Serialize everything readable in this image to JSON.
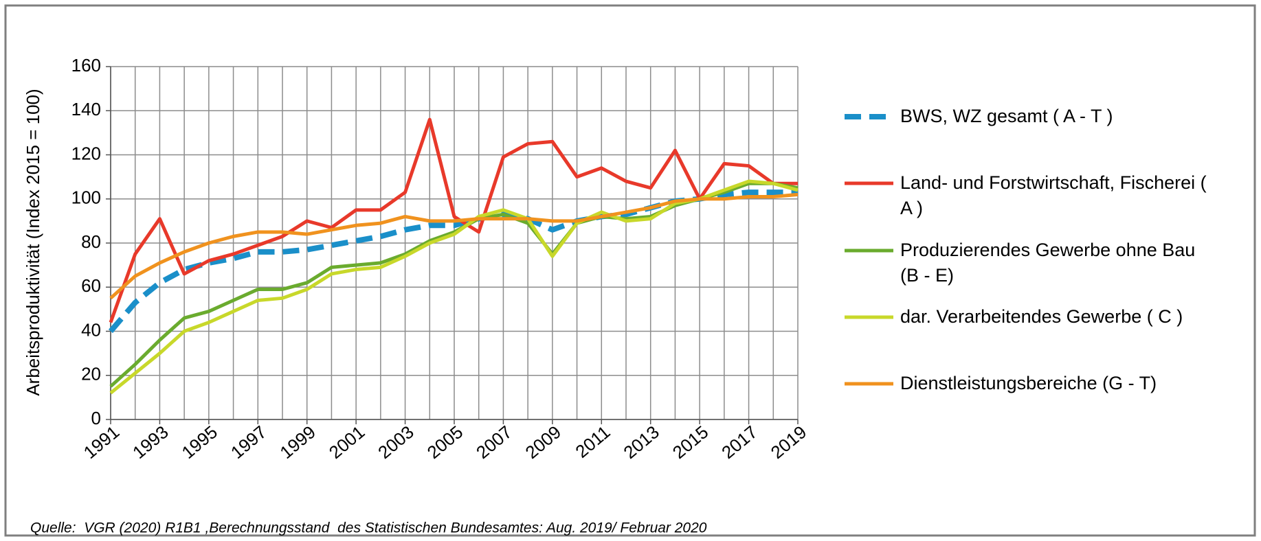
{
  "chart_data": {
    "type": "line",
    "y_label": "Arbeitsproduktivität (Index 2015 = 100)",
    "source": "Quelle:  VGR (2020) R1B1 ,Berechnungsstand  des Statistischen Bundesamtes: Aug. 2019/ Februar 2020",
    "x": [
      1991,
      1992,
      1993,
      1994,
      1995,
      1996,
      1997,
      1998,
      1999,
      2000,
      2001,
      2002,
      2003,
      2004,
      2005,
      2006,
      2007,
      2008,
      2009,
      2010,
      2011,
      2012,
      2013,
      2014,
      2015,
      2016,
      2017,
      2018,
      2019
    ],
    "xlim": [
      1991,
      2019
    ],
    "xticks": [
      1991,
      1993,
      1995,
      1997,
      1999,
      2001,
      2003,
      2005,
      2007,
      2009,
      2011,
      2013,
      2015,
      2017,
      2019
    ],
    "ylim": [
      0,
      160
    ],
    "yticks": [
      0,
      20,
      40,
      60,
      80,
      100,
      120,
      140,
      160
    ],
    "grid": true,
    "legend": "right",
    "series": [
      {
        "name": "BWS, WZ gesamt ( A - T )",
        "color": "#1a8fc9",
        "line_style": "dashed",
        "values": [
          40,
          53,
          62,
          68,
          71,
          73,
          76,
          76,
          77,
          79,
          81,
          83,
          86,
          88,
          88,
          91,
          93,
          91,
          86,
          90,
          92,
          93,
          96,
          99,
          100,
          102,
          103,
          103,
          103
        ]
      },
      {
        "name": "Land- und Forstwirtschaft, Fischerei ( A )",
        "color": "#e8392a",
        "line_style": "solid",
        "values": [
          44,
          75,
          91,
          66,
          72,
          75,
          79,
          83,
          90,
          87,
          95,
          95,
          103,
          136,
          92,
          85,
          119,
          125,
          126,
          110,
          114,
          108,
          105,
          122,
          100,
          116,
          115,
          107,
          107
        ]
      },
      {
        "name": "Produzierendes Gewerbe ohne Bau (B - E)",
        "color": "#6aab2e",
        "line_style": "solid",
        "values": [
          15,
          25,
          36,
          46,
          49,
          54,
          59,
          59,
          62,
          69,
          70,
          71,
          75,
          81,
          85,
          91,
          93,
          89,
          75,
          89,
          92,
          91,
          92,
          97,
          100,
          103,
          107,
          107,
          105
        ]
      },
      {
        "name": "dar. Verarbeitendes Gewerbe ( C )",
        "color": "#c8d82a",
        "line_style": "solid",
        "values": [
          12,
          21,
          30,
          40,
          44,
          49,
          54,
          55,
          59,
          66,
          68,
          69,
          74,
          80,
          84,
          92,
          95,
          91,
          74,
          89,
          94,
          90,
          91,
          98,
          100,
          104,
          108,
          107,
          104
        ]
      },
      {
        "name": "Dienstleistungsbereiche (G - T)",
        "color": "#f0921e",
        "line_style": "solid",
        "values": [
          55,
          65,
          71,
          76,
          80,
          83,
          85,
          85,
          84,
          86,
          88,
          89,
          92,
          90,
          90,
          91,
          91,
          91,
          90,
          90,
          92,
          94,
          96,
          99,
          100,
          100,
          101,
          101,
          102
        ]
      }
    ]
  }
}
